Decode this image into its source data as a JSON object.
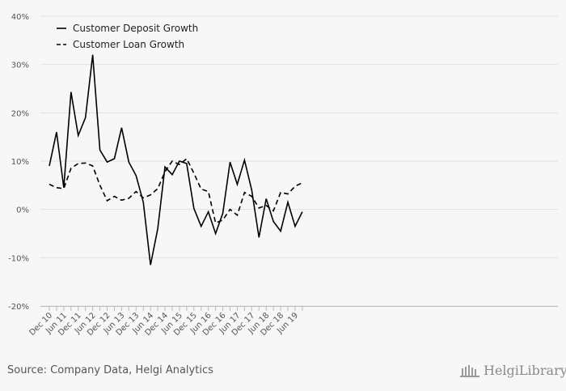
{
  "chart_data": {
    "type": "line",
    "title": "",
    "xlabel": "",
    "ylabel": "",
    "ylim": [
      -20,
      40
    ],
    "y_ticks": [
      "40%",
      "30%",
      "20%",
      "10%",
      "0%",
      "-10%",
      "-20%"
    ],
    "y_tick_values": [
      40,
      30,
      20,
      10,
      0,
      -10,
      -20
    ],
    "grid": "horizontal",
    "legend_position": "top-left",
    "x_tick_labels": [
      "Dec 10",
      "Jun 11",
      "Dec 11",
      "Jun 12",
      "Dec 12",
      "Jun 13",
      "Dec 13",
      "Jun 14",
      "Dec 14",
      "Jun 15",
      "Dec 15",
      "Jun 16",
      "Dec 16",
      "Jun 17",
      "Dec 17",
      "Jun 18",
      "Dec 18",
      "Jun 19"
    ],
    "series": [
      {
        "name": "Customer Deposit Growth",
        "style": "solid",
        "color": "#000000",
        "values": [
          9.0,
          16.0,
          4.5,
          24.3,
          15.3,
          19.0,
          32.0,
          12.3,
          9.8,
          10.5,
          16.9,
          9.8,
          7.0,
          1.5,
          -11.5,
          -4.0,
          8.8,
          7.2,
          10.0,
          9.5,
          0.2,
          -3.5,
          -0.5,
          -5.0,
          -0.8,
          9.8,
          5.2,
          10.2,
          4.0,
          -5.8,
          2.2,
          -2.5,
          -4.5,
          1.5,
          -3.5,
          -0.5
        ]
      },
      {
        "name": "Customer Loan Growth",
        "style": "dashed",
        "color": "#000000",
        "values": [
          5.2,
          4.5,
          4.3,
          8.5,
          9.5,
          9.6,
          9.0,
          5.0,
          1.8,
          2.7,
          1.9,
          2.3,
          3.7,
          2.4,
          3.0,
          4.3,
          7.8,
          10.0,
          9.3,
          10.5,
          7.5,
          4.2,
          3.7,
          -2.8,
          -2.2,
          0.0,
          -1.2,
          3.5,
          2.7,
          0.3,
          0.8,
          -0.3,
          3.5,
          3.2,
          4.8,
          5.5
        ]
      }
    ]
  },
  "source_text": "Source: Company Data, Helgi Analytics",
  "logo": {
    "text": "HelgiLibrary",
    "icon": "library-building-icon"
  }
}
